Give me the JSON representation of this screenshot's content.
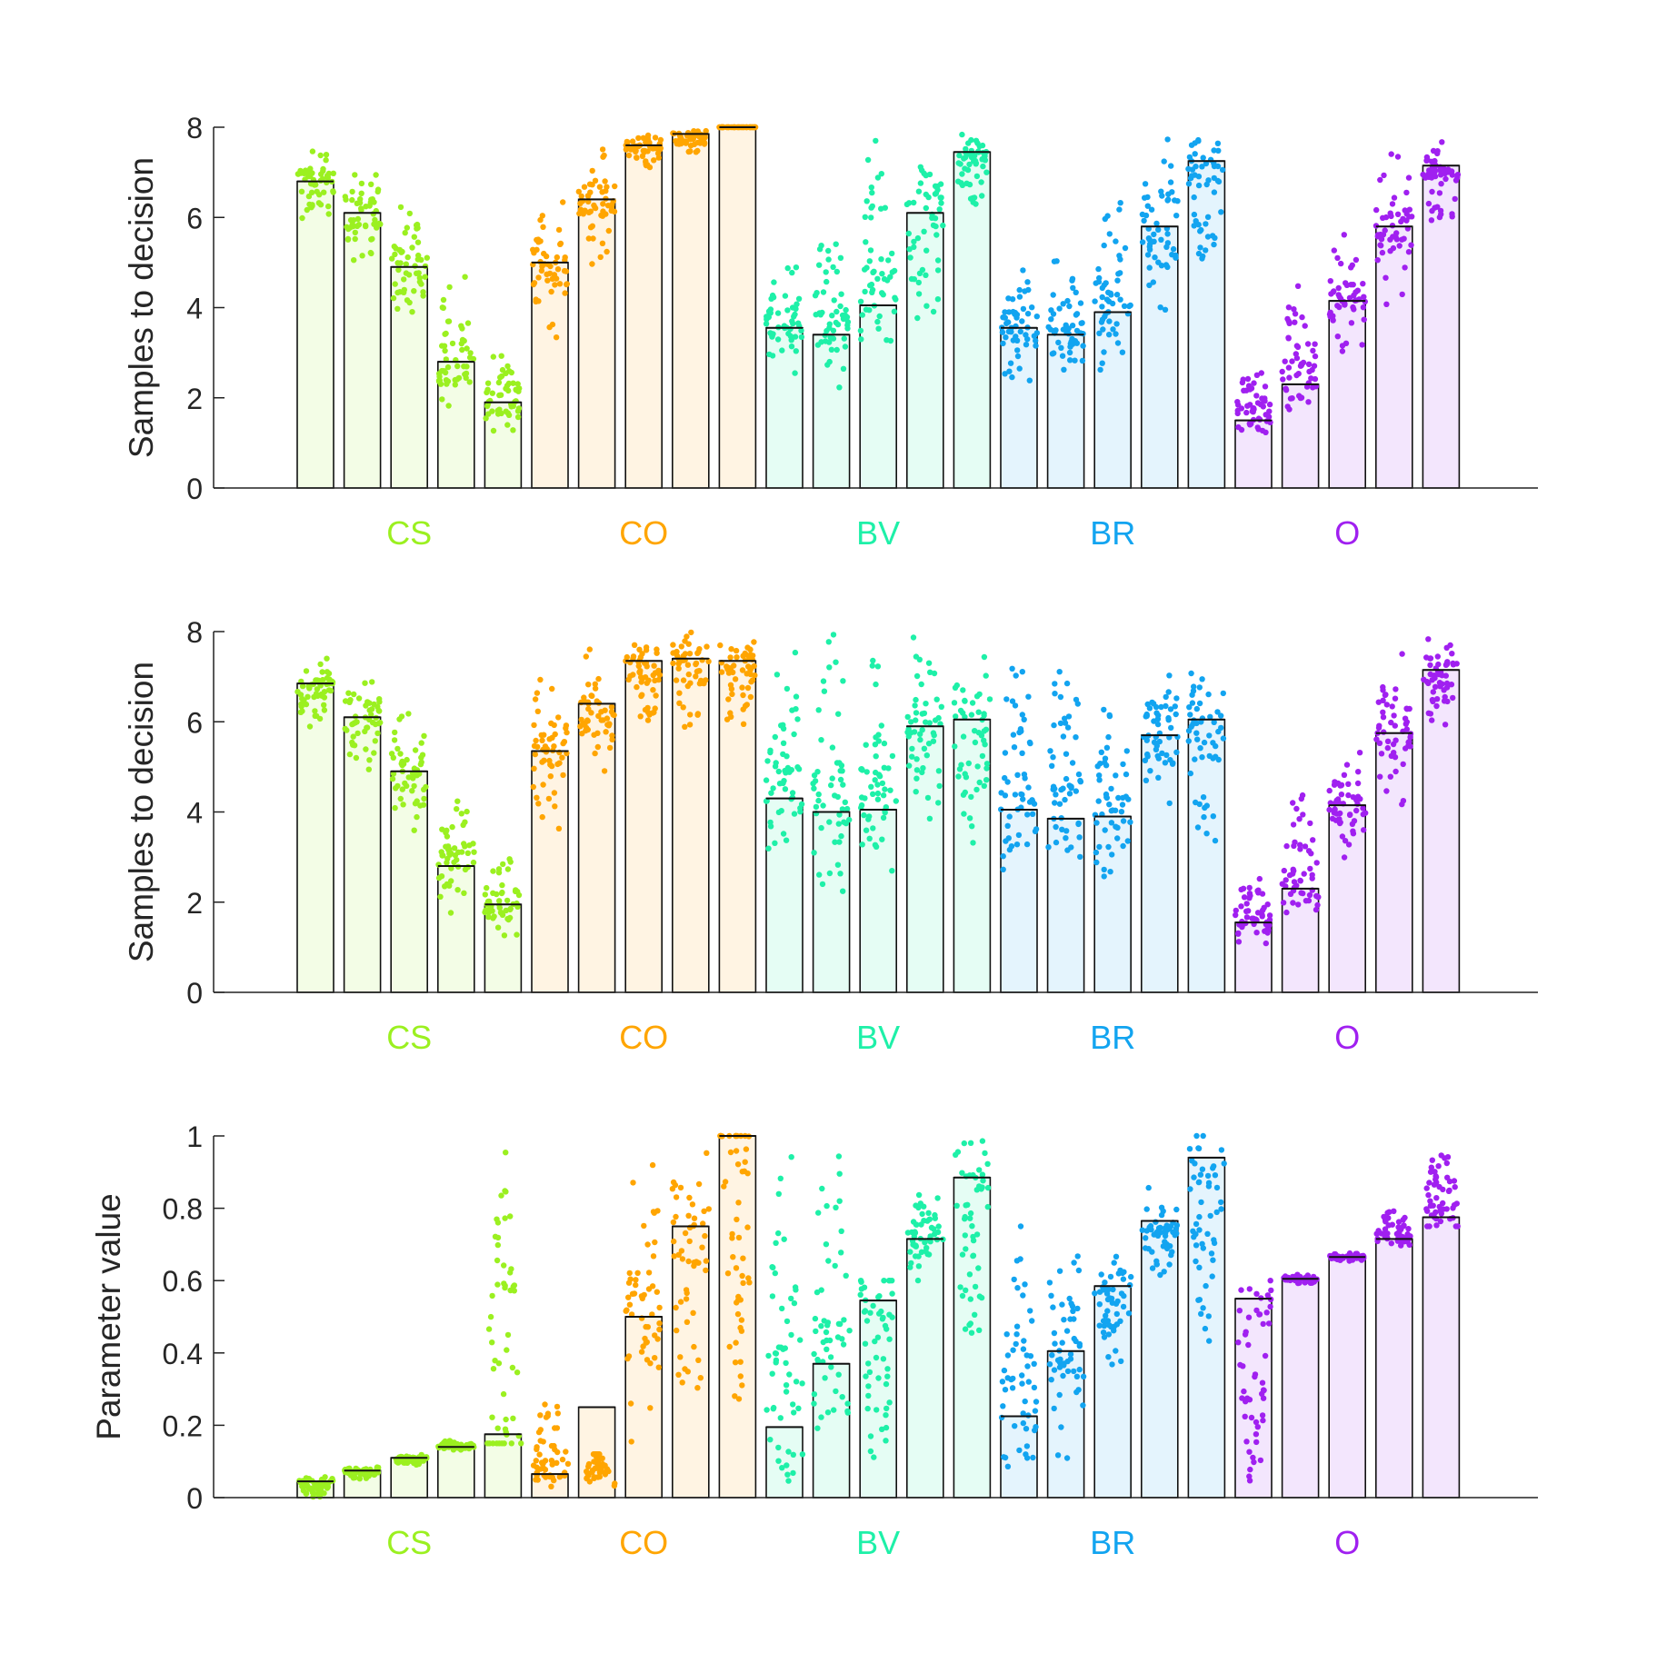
{
  "group_colors": {
    "CS": "#9bf020",
    "CO": "#ffa500",
    "BV": "#1ef0a8",
    "BR": "#12a4f0",
    "O": "#a020f0"
  },
  "group_fills": {
    "CS": "#f3fde6",
    "CO": "#fff4e3",
    "BV": "#e5fdf4",
    "BR": "#e4f4fd",
    "O": "#f3e6fd"
  },
  "chart_data": [
    {
      "type": "bar",
      "ylabel": "Samples to decision",
      "ylim": [
        0,
        8
      ],
      "yticks": [
        "0",
        "2",
        "4",
        "6",
        "8"
      ],
      "grid": false,
      "groups": [
        {
          "label": "CS",
          "values": [
            6.8,
            6.1,
            4.9,
            2.8,
            1.9
          ]
        },
        {
          "label": "CO",
          "values": [
            5.0,
            6.4,
            7.6,
            7.85,
            8.0
          ]
        },
        {
          "label": "BV",
          "values": [
            3.55,
            3.4,
            4.05,
            6.1,
            7.45
          ]
        },
        {
          "label": "BR",
          "values": [
            3.55,
            3.4,
            3.9,
            5.8,
            7.25
          ]
        },
        {
          "label": "O",
          "values": [
            1.5,
            2.3,
            4.15,
            5.8,
            7.15
          ]
        }
      ],
      "spread": [
        [
          [
            5.6,
            7.6
          ],
          [
            4.8,
            7.2
          ],
          [
            3.4,
            6.4
          ],
          [
            1.4,
            4.8
          ],
          [
            1.0,
            3.2
          ]
        ],
        [
          [
            3.0,
            6.4
          ],
          [
            4.8,
            7.8
          ],
          [
            6.8,
            8.0
          ],
          [
            7.4,
            8.0
          ],
          [
            8.0,
            8.0
          ]
        ],
        [
          [
            2.2,
            5.0
          ],
          [
            1.8,
            5.8
          ],
          [
            2.2,
            8.0
          ],
          [
            3.6,
            8.0
          ],
          [
            6.0,
            8.0
          ]
        ],
        [
          [
            2.2,
            5.0
          ],
          [
            1.8,
            5.4
          ],
          [
            2.0,
            6.6
          ],
          [
            3.4,
            8.0
          ],
          [
            4.4,
            8.0
          ]
        ],
        [
          [
            1.0,
            2.8
          ],
          [
            1.2,
            4.6
          ],
          [
            2.6,
            5.8
          ],
          [
            4.0,
            7.8
          ],
          [
            5.8,
            8.0
          ]
        ]
      ]
    },
    {
      "type": "bar",
      "ylabel": "Samples to decision",
      "ylim": [
        0,
        8
      ],
      "yticks": [
        "0",
        "2",
        "4",
        "6",
        "8"
      ],
      "grid": false,
      "groups": [
        {
          "label": "CS",
          "values": [
            6.85,
            6.1,
            4.9,
            2.8,
            1.95
          ]
        },
        {
          "label": "CO",
          "values": [
            5.35,
            6.4,
            7.35,
            7.4,
            7.35
          ]
        },
        {
          "label": "BV",
          "values": [
            4.3,
            4.0,
            4.05,
            5.9,
            6.05
          ]
        },
        {
          "label": "BR",
          "values": [
            4.05,
            3.85,
            3.9,
            5.7,
            6.05
          ]
        },
        {
          "label": "O",
          "values": [
            1.55,
            2.3,
            4.15,
            5.75,
            7.15
          ]
        }
      ],
      "spread": [
        [
          [
            5.6,
            7.6
          ],
          [
            4.8,
            7.2
          ],
          [
            3.4,
            6.4
          ],
          [
            1.4,
            4.8
          ],
          [
            1.0,
            3.2
          ]
        ],
        [
          [
            3.2,
            7.4
          ],
          [
            4.6,
            7.8
          ],
          [
            5.8,
            8.0
          ],
          [
            5.8,
            8.0
          ],
          [
            5.8,
            8.0
          ]
        ],
        [
          [
            2.2,
            8.0
          ],
          [
            1.8,
            8.0
          ],
          [
            2.2,
            8.0
          ],
          [
            3.6,
            8.0
          ],
          [
            3.0,
            8.0
          ]
        ],
        [
          [
            2.2,
            7.6
          ],
          [
            1.8,
            7.6
          ],
          [
            2.0,
            6.6
          ],
          [
            3.4,
            8.0
          ],
          [
            3.0,
            8.0
          ]
        ],
        [
          [
            1.0,
            2.8
          ],
          [
            1.2,
            4.6
          ],
          [
            2.6,
            5.8
          ],
          [
            4.0,
            7.8
          ],
          [
            5.8,
            8.0
          ]
        ]
      ]
    },
    {
      "type": "bar",
      "ylabel": "Parameter value",
      "ylim": [
        0,
        1
      ],
      "yticks": [
        "0",
        "0.2",
        "0.4",
        "0.6",
        "0.8",
        "1"
      ],
      "grid": false,
      "groups": [
        {
          "label": "CS",
          "values": [
            0.045,
            0.075,
            0.11,
            0.14,
            0.175
          ]
        },
        {
          "label": "CO",
          "values": [
            0.065,
            0.25,
            0.5,
            0.75,
            1.0
          ]
        },
        {
          "label": "BV",
          "values": [
            0.195,
            0.37,
            0.545,
            0.715,
            0.885
          ]
        },
        {
          "label": "BR",
          "values": [
            0.225,
            0.405,
            0.585,
            0.765,
            0.94
          ]
        },
        {
          "label": "O",
          "values": [
            0.55,
            0.605,
            0.665,
            0.715,
            0.775
          ]
        }
      ],
      "spread": [
        [
          [
            0.0,
            0.07
          ],
          [
            0.05,
            0.09
          ],
          [
            0.09,
            0.12
          ],
          [
            0.13,
            0.16
          ],
          [
            0.15,
            1.0
          ]
        ],
        [
          [
            0.0,
            0.27
          ],
          [
            0.03,
            0.12
          ],
          [
            0.12,
            0.94
          ],
          [
            0.12,
            1.0
          ],
          [
            0.17,
            1.0
          ]
        ],
        [
          [
            0.0,
            1.0
          ],
          [
            0.0,
            1.0
          ],
          [
            0.05,
            0.6
          ],
          [
            0.58,
            0.87
          ],
          [
            0.31,
            1.0
          ]
        ],
        [
          [
            0.0,
            0.85
          ],
          [
            0.0,
            0.85
          ],
          [
            0.35,
            0.69
          ],
          [
            0.58,
            0.86
          ],
          [
            0.4,
            1.0
          ]
        ],
        [
          [
            0.0,
            0.6
          ],
          [
            0.59,
            0.62
          ],
          [
            0.65,
            0.68
          ],
          [
            0.69,
            0.8
          ],
          [
            0.75,
            1.0
          ]
        ]
      ]
    }
  ]
}
